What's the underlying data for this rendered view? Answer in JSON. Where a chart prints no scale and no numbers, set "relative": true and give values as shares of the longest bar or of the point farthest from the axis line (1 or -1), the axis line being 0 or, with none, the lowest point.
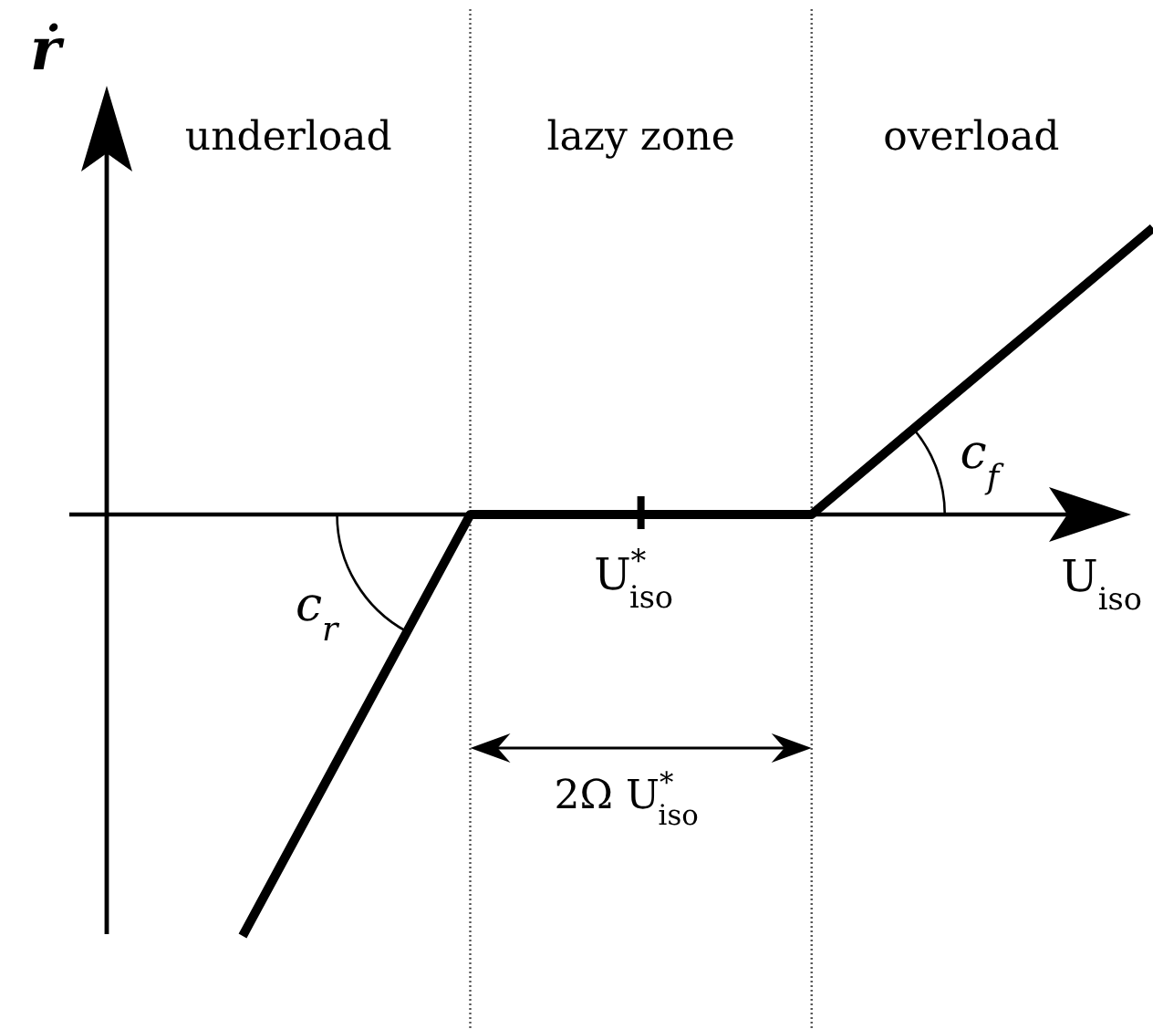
{
  "chart_data": {
    "type": "line",
    "xlabel": "U$_{iso}$",
    "ylabel": "ṙ",
    "categories": [
      null,
      null,
      null,
      null,
      null,
      null,
      null,
      null,
      null
    ],
    "values": [
      -1,
      -0.5,
      0,
      0,
      0,
      0,
      0.227,
      0.453,
      0.68
    ],
    "color": "#000000",
    "relative": true,
    "annotations": [
      "underload",
      "lazy zone",
      "overload",
      "c$_{r}$",
      "c$_{f}$",
      "U$^{*}$$_{iso}$",
      "2Ω U$^{*}$$_{iso}$"
    ]
  }
}
